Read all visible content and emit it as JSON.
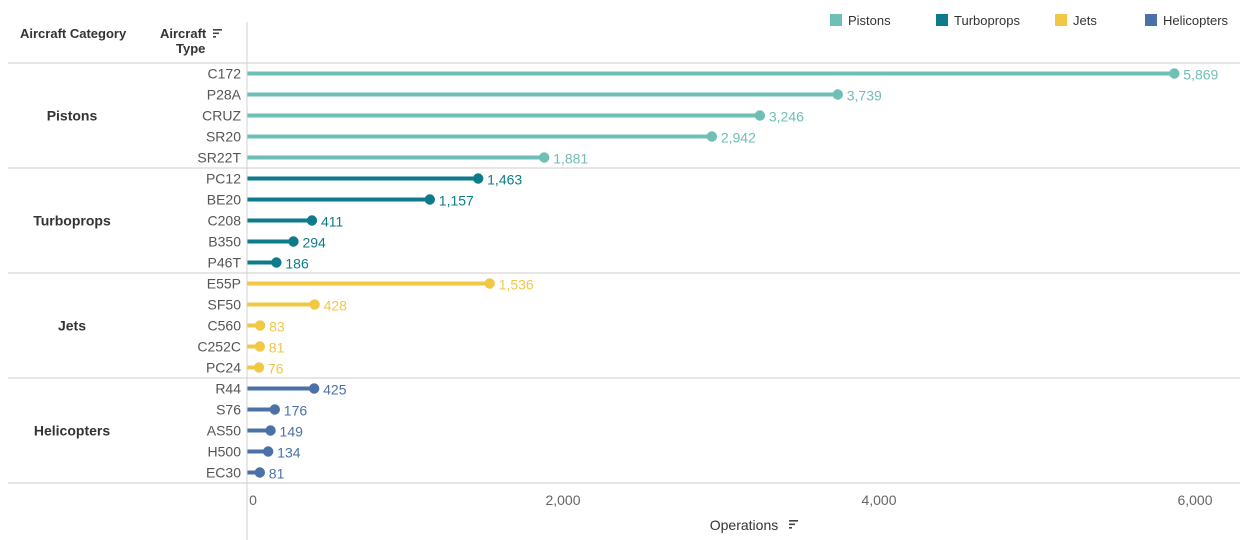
{
  "header": {
    "category_label": "Aircraft Category",
    "type_label_line1": "Aircraft",
    "type_label_line2": "Type"
  },
  "legend_items": [
    {
      "label": "Pistons",
      "color": "#6ebfb5"
    },
    {
      "label": "Turboprops",
      "color": "#0e7b8a"
    },
    {
      "label": "Jets",
      "color": "#f0c846"
    },
    {
      "label": "Helicopters",
      "color": "#4a72a6"
    }
  ],
  "chart_data": {
    "type": "bar",
    "style": "lollipop",
    "orientation": "horizontal",
    "xlabel": "Operations",
    "xlim": [
      0,
      6000
    ],
    "x_ticks": [
      0,
      2000,
      4000,
      6000
    ],
    "x_tick_labels": [
      "0",
      "2,000",
      "4,000",
      "6,000"
    ],
    "legend_position": "top-right",
    "groups": [
      {
        "name": "Pistons",
        "color": "#6ebfb5",
        "types": [
          "C172",
          "P28A",
          "CRUZ",
          "SR20",
          "SR22T"
        ],
        "values": [
          5869,
          3739,
          3246,
          2942,
          1881
        ],
        "labels": [
          "5,869",
          "3,739",
          "3,246",
          "2,942",
          "1,881"
        ]
      },
      {
        "name": "Turboprops",
        "color": "#0e7b8a",
        "types": [
          "PC12",
          "BE20",
          "C208",
          "B350",
          "P46T"
        ],
        "values": [
          1463,
          1157,
          411,
          294,
          186
        ],
        "labels": [
          "1,463",
          "1,157",
          "411",
          "294",
          "186"
        ]
      },
      {
        "name": "Jets",
        "color": "#f0c846",
        "types": [
          "E55P",
          "SF50",
          "C560",
          "C252C",
          "PC24"
        ],
        "values": [
          1536,
          428,
          83,
          81,
          76
        ],
        "labels": [
          "1,536",
          "428",
          "83",
          "81",
          "76"
        ]
      },
      {
        "name": "Helicopters",
        "color": "#4a72a6",
        "types": [
          "R44",
          "S76",
          "AS50",
          "H500",
          "EC30"
        ],
        "values": [
          425,
          176,
          149,
          134,
          81
        ],
        "labels": [
          "425",
          "176",
          "149",
          "134",
          "81"
        ]
      }
    ]
  }
}
